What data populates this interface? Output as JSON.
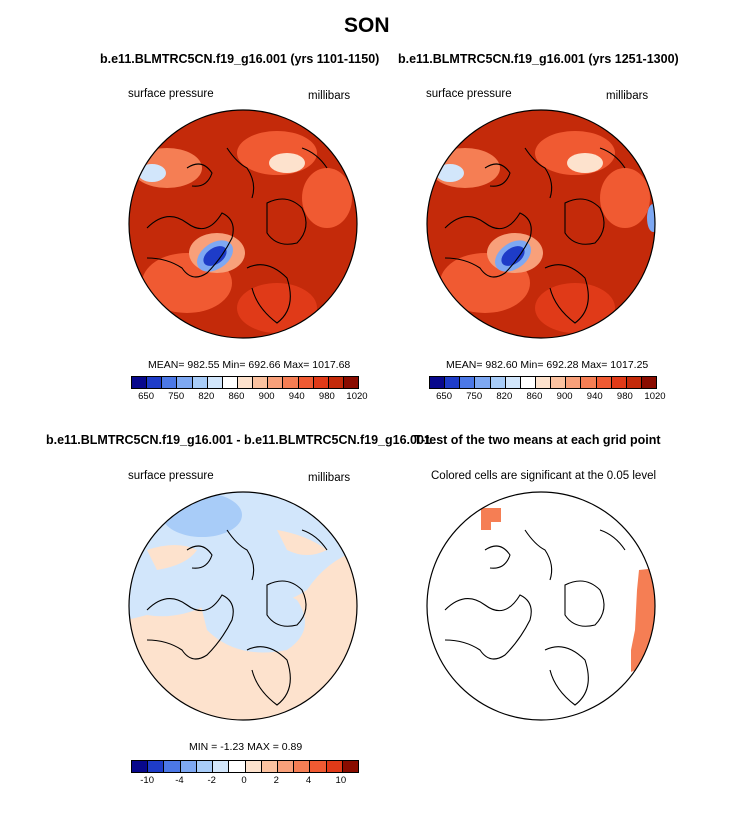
{
  "page_title": "SON",
  "panels": [
    {
      "title": "b.e11.BLMTRC5CN.f19_g16.001 (yrs 1101-1150)",
      "left_label": "surface pressure",
      "right_label": "millibars",
      "stats": "MEAN= 982.55  Min= 692.66  Max= 1017.68"
    },
    {
      "title": "b.e11.BLMTRC5CN.f19_g16.001 (yrs 1251-1300)",
      "left_label": "surface pressure",
      "right_label": "millibars",
      "stats": "MEAN= 982.60  Min= 692.28  Max= 1017.25"
    },
    {
      "title": "b.e11.BLMTRC5CN.f19_g16.001 - b.e11.BLMTRC5CN.f19_g16.001",
      "left_label": "surface pressure",
      "right_label": "millibars",
      "stats": "MIN =  -1.23 MAX =   0.89"
    },
    {
      "title": "T-test of the two means at each grid point",
      "left_label": "Colored cells are significant at the 0.05 level"
    }
  ],
  "colorbar_abs": {
    "labels": [
      "650",
      "750",
      "820",
      "860",
      "900",
      "940",
      "980",
      "1020"
    ],
    "colors": [
      "#08088c",
      "#1e3cc8",
      "#4c78e6",
      "#7ea8f2",
      "#a8ccf8",
      "#d2e6fb",
      "#ffffff",
      "#fde2cd",
      "#fbc2a0",
      "#f8a07a",
      "#f57e54",
      "#f05a32",
      "#e03a18",
      "#c42a0a",
      "#8a0c00"
    ]
  },
  "colorbar_diff": {
    "labels": [
      "-10",
      "-4",
      "-2",
      "0",
      "2",
      "4",
      "10"
    ],
    "colors": [
      "#08088c",
      "#1e3cc8",
      "#4c78e6",
      "#7ea8f2",
      "#a8ccf8",
      "#d2e6fb",
      "#ffffff",
      "#fde2cd",
      "#fbc2a0",
      "#f8a07a",
      "#f57e54",
      "#f05a32",
      "#e03a18",
      "#8a0c00"
    ]
  }
}
